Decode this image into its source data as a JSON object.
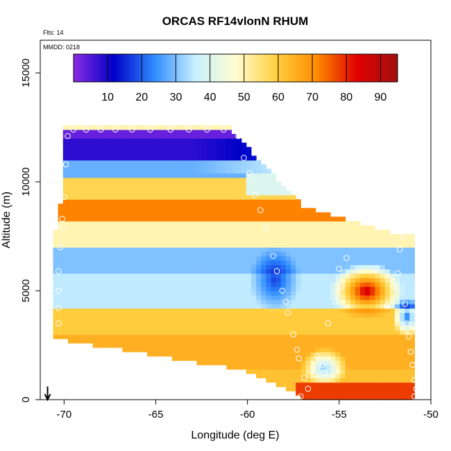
{
  "chart_data": {
    "type": "heatmap",
    "title": "ORCAS RF14vlonN RHUM",
    "annotations": {
      "flights": "Flts: 14",
      "date": "MMDD: 0218"
    },
    "xlabel": "Longitude (deg E)",
    "ylabel": "Altitude (m)",
    "xlim": [
      -71.3,
      -50.0
    ],
    "ylim": [
      0,
      16500
    ],
    "xticks": [
      -70,
      -65,
      -60,
      -55,
      -50
    ],
    "xtick_labels": [
      "-70",
      "-65",
      "-60",
      "-55",
      "-50"
    ],
    "yticks": [
      0,
      5000,
      10000,
      15000
    ],
    "ytick_labels": [
      "0",
      "5000",
      "10000",
      "15000"
    ],
    "colorbar": {
      "range": [
        0,
        95
      ],
      "ticks": [
        10,
        20,
        30,
        40,
        50,
        60,
        70,
        80,
        90
      ],
      "tick_labels": [
        "10",
        "20",
        "30",
        "40",
        "50",
        "60",
        "70",
        "80",
        "90"
      ],
      "colors": [
        "#8a2be2",
        "#0000c8",
        "#2f8cff",
        "#c8f0ff",
        "#fffdd0",
        "#ffd040",
        "#ff8c00",
        "#e00000",
        "#a01010"
      ]
    },
    "grid": false,
    "legend_position": "top-inside",
    "field": {
      "lon_grid": [
        -70.2,
        -51.0
      ],
      "alt_grid": [
        0,
        12500
      ],
      "bands": [
        {
          "alt": [
            12000,
            12500
          ],
          "rhum": 3
        },
        {
          "alt": [
            11000,
            12000
          ],
          "rhum": 8
        },
        {
          "alt": [
            10300,
            11000
          ],
          "rhum": 28
        },
        {
          "alt": [
            9300,
            10300
          ],
          "rhum": 58
        },
        {
          "alt": [
            8300,
            9300
          ],
          "rhum": 72
        },
        {
          "alt": [
            7000,
            8300
          ],
          "rhum": 50
        },
        {
          "alt": [
            5800,
            7000
          ],
          "rhum": 30
        },
        {
          "alt": [
            4200,
            5800
          ],
          "rhum": 35
        },
        {
          "alt": [
            3000,
            4200
          ],
          "rhum": 60
        },
        {
          "alt": [
            1500,
            3000
          ],
          "rhum": 65
        },
        {
          "alt": [
            0,
            1500
          ],
          "rhum": 62
        }
      ],
      "moist_core": {
        "lon": -53.5,
        "alt": 5000,
        "rhum": 88
      },
      "dry_core": {
        "lon": -58.5,
        "alt": 5500,
        "rhum": 15
      }
    },
    "flight_points": [
      {
        "lon": -69.8,
        "alt": 12100
      },
      {
        "lon": -69.5,
        "alt": 12400
      },
      {
        "lon": -68.8,
        "alt": 12400
      },
      {
        "lon": -68.0,
        "alt": 12400
      },
      {
        "lon": -67.2,
        "alt": 12400
      },
      {
        "lon": -66.3,
        "alt": 12400
      },
      {
        "lon": -65.3,
        "alt": 12400
      },
      {
        "lon": -64.2,
        "alt": 12400
      },
      {
        "lon": -63.2,
        "alt": 12400
      },
      {
        "lon": -62.2,
        "alt": 12400
      },
      {
        "lon": -61.3,
        "alt": 12400
      },
      {
        "lon": -60.5,
        "alt": 12100
      },
      {
        "lon": -60.2,
        "alt": 11100
      },
      {
        "lon": -59.9,
        "alt": 10400
      },
      {
        "lon": -59.6,
        "alt": 9400
      },
      {
        "lon": -59.3,
        "alt": 8700
      },
      {
        "lon": -59.0,
        "alt": 7900
      },
      {
        "lon": -58.6,
        "alt": 6600
      },
      {
        "lon": -58.4,
        "alt": 5900
      },
      {
        "lon": -58.1,
        "alt": 5000
      },
      {
        "lon": -57.9,
        "alt": 4500
      },
      {
        "lon": -57.8,
        "alt": 4000
      },
      {
        "lon": -57.5,
        "alt": 3000
      },
      {
        "lon": -57.3,
        "alt": 2300
      },
      {
        "lon": -57.2,
        "alt": 1900
      },
      {
        "lon": -56.9,
        "alt": 1000
      },
      {
        "lon": -56.7,
        "alt": 500
      },
      {
        "lon": -56.2,
        "alt": 2000
      },
      {
        "lon": -55.9,
        "alt": 1600
      },
      {
        "lon": -55.8,
        "alt": 1200
      },
      {
        "lon": -55.6,
        "alt": 3500
      },
      {
        "lon": -55.2,
        "alt": 4500
      },
      {
        "lon": -54.9,
        "alt": 5200
      },
      {
        "lon": -55.0,
        "alt": 6000
      },
      {
        "lon": -54.6,
        "alt": 6500
      },
      {
        "lon": -53.0,
        "alt": 6000
      },
      {
        "lon": -52.4,
        "alt": 4300
      },
      {
        "lon": -52.0,
        "alt": 5200
      },
      {
        "lon": -51.8,
        "alt": 5800
      },
      {
        "lon": -51.7,
        "alt": 6900
      },
      {
        "lon": -51.5,
        "alt": 7500
      },
      {
        "lon": -51.4,
        "alt": 4400
      },
      {
        "lon": -51.3,
        "alt": 3500
      },
      {
        "lon": -51.2,
        "alt": 2900
      },
      {
        "lon": -51.1,
        "alt": 2200
      },
      {
        "lon": -51.0,
        "alt": 1600
      },
      {
        "lon": -50.9,
        "alt": 900
      },
      {
        "lon": -50.8,
        "alt": 500
      },
      {
        "lon": -50.9,
        "alt": 150
      },
      {
        "lon": -57.1,
        "alt": 150
      },
      {
        "lon": -69.9,
        "alt": 10800
      },
      {
        "lon": -70.0,
        "alt": 9300
      },
      {
        "lon": -70.1,
        "alt": 8300
      },
      {
        "lon": -70.1,
        "alt": 7900
      },
      {
        "lon": -70.2,
        "alt": 7000
      },
      {
        "lon": -70.3,
        "alt": 5900
      },
      {
        "lon": -70.3,
        "alt": 5000
      },
      {
        "lon": -70.3,
        "alt": 4200
      },
      {
        "lon": -70.3,
        "alt": 3500
      }
    ],
    "marker": {
      "symbol": "down-arrow",
      "lon": -70.9
    }
  }
}
